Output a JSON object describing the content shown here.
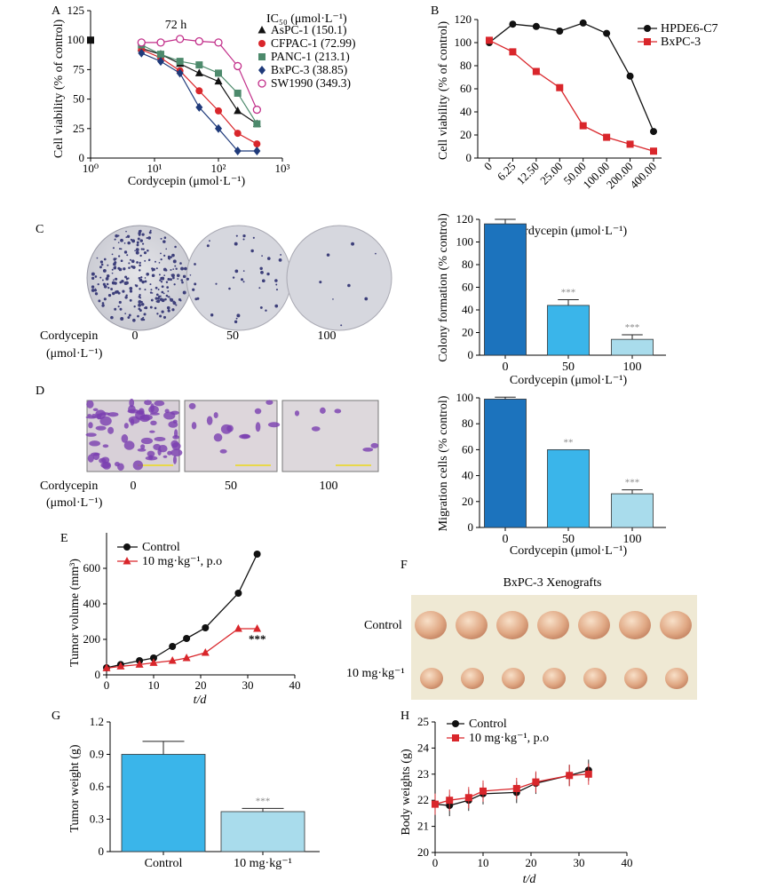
{
  "chart_data": [
    {
      "id": "A",
      "type": "line",
      "panel_label": "A",
      "title": "72 h",
      "xlabel": "Cordycepin (μmol·L⁻¹)",
      "ylabel": "Cell viability (% of control)",
      "x_scale": "log",
      "xlim": [
        1,
        1000
      ],
      "ylim": [
        0,
        125
      ],
      "x_ticks": [
        1,
        10,
        100,
        1000
      ],
      "x_tick_labels": [
        "10⁰",
        "10¹",
        "10²",
        "10³"
      ],
      "y_ticks": [
        0,
        25,
        50,
        75,
        100,
        125
      ],
      "legend_title": "IC₅₀ (μmol·L⁻¹)",
      "legend_position": "top-right",
      "x": [
        6.25,
        12.5,
        25,
        50,
        100,
        200,
        400
      ],
      "series": [
        {
          "name": "AsPC-1 (150.1)",
          "marker": "triangle",
          "color": "#111111",
          "values": [
            93,
            88,
            80,
            72,
            65,
            40,
            29
          ]
        },
        {
          "name": "CFPAC-1 (72.99)",
          "marker": "circle",
          "color": "#d9262b",
          "values": [
            92,
            85,
            74,
            57,
            40,
            21,
            12
          ]
        },
        {
          "name": "PANC-1 (213.1)",
          "marker": "square",
          "color": "#4d8a6c",
          "values": [
            96,
            88,
            82,
            79,
            72,
            55,
            29
          ]
        },
        {
          "name": "BxPC-3 (38.85)",
          "marker": "diamond",
          "color": "#1f3a7a",
          "values": [
            89,
            82,
            72,
            43,
            25,
            6,
            6
          ]
        },
        {
          "name": "SW1990 (349.3)",
          "marker": "open-circle",
          "color": "#c22f8a",
          "values": [
            98,
            98,
            101,
            99,
            98,
            78,
            41
          ]
        }
      ],
      "extra_point": {
        "x": 1,
        "y": 100
      }
    },
    {
      "id": "B",
      "type": "line",
      "panel_label": "B",
      "xlabel": "Cordycepin (μmol·L⁻¹)",
      "ylabel": "Cell viability (% of control)",
      "categories": [
        "0",
        "6.25",
        "12.50",
        "25.00",
        "50.00",
        "100.00",
        "200.00",
        "400.00"
      ],
      "ylim": [
        0,
        120
      ],
      "y_ticks": [
        0,
        20,
        40,
        60,
        80,
        100,
        120
      ],
      "legend_position": "top-right",
      "series": [
        {
          "name": "HPDE6-C7",
          "marker": "circle",
          "color": "#111111",
          "values": [
            100,
            116,
            114,
            110,
            117,
            108,
            71,
            23
          ]
        },
        {
          "name": "BxPC-3",
          "marker": "square",
          "color": "#d9262b",
          "values": [
            102,
            92,
            75,
            61,
            28,
            18,
            12,
            6
          ]
        }
      ]
    },
    {
      "id": "C",
      "type": "bar",
      "xlabel": "Cordycepin (μmol·L⁻¹)",
      "ylabel": "Colony formation (% control)",
      "categories": [
        "0",
        "50",
        "100"
      ],
      "values": [
        116,
        44,
        14
      ],
      "errors": [
        4,
        5,
        4
      ],
      "annotations": [
        "",
        "***",
        "***"
      ],
      "colors": [
        "#1c73bd",
        "#3ab5ea",
        "#a9dcec"
      ],
      "ylim": [
        0,
        120
      ],
      "y_ticks": [
        0,
        20,
        40,
        60,
        80,
        100,
        120
      ]
    },
    {
      "id": "D",
      "type": "bar",
      "xlabel": "Cordycepin (μmol·L⁻¹)",
      "ylabel": "Migration cells (% control)",
      "categories": [
        "0",
        "50",
        "100"
      ],
      "values": [
        99,
        60,
        26
      ],
      "errors": [
        1.5,
        0,
        3
      ],
      "annotations": [
        "",
        "**",
        "***"
      ],
      "colors": [
        "#1c73bd",
        "#3ab5ea",
        "#a9dcec"
      ],
      "ylim": [
        0,
        100
      ],
      "y_ticks": [
        0,
        20,
        40,
        60,
        80,
        100
      ]
    },
    {
      "id": "E",
      "type": "line",
      "panel_label": "E",
      "xlabel": "t/d",
      "ylabel": "Tumor volume (mm³)",
      "xlim": [
        0,
        40
      ],
      "ylim": [
        0,
        800
      ],
      "x_ticks": [
        0,
        10,
        20,
        30,
        40
      ],
      "y_ticks": [
        0,
        200,
        400,
        600
      ],
      "legend_position": "top-left",
      "x": [
        0,
        3,
        7,
        10,
        14,
        17,
        21,
        28,
        32
      ],
      "series": [
        {
          "name": "Control",
          "marker": "circle",
          "color": "#111111",
          "values": [
            40,
            58,
            80,
            95,
            160,
            205,
            265,
            460,
            680
          ]
        },
        {
          "name": "10 mg·kg⁻¹, p.o",
          "marker": "triangle",
          "color": "#d9262b",
          "values": [
            38,
            48,
            58,
            68,
            80,
            95,
            125,
            260,
            260
          ]
        }
      ],
      "annotation": "***"
    },
    {
      "id": "G",
      "type": "bar",
      "panel_label": "G",
      "ylabel": "Tumor weight (g)",
      "categories": [
        "Control",
        "10 mg·kg⁻¹"
      ],
      "values": [
        0.9,
        0.37
      ],
      "errors": [
        0.12,
        0.03
      ],
      "annotations": [
        "",
        "***"
      ],
      "colors": [
        "#3ab5ea",
        "#a9dcec"
      ],
      "ylim": [
        0,
        1.2
      ],
      "y_ticks": [
        0,
        0.3,
        0.6,
        0.9,
        1.2
      ],
      "y_tick_labels": [
        "0",
        "0.3",
        "0.6",
        "0.9",
        "1.2"
      ]
    },
    {
      "id": "H",
      "type": "line",
      "panel_label": "H",
      "xlabel": "t/d",
      "ylabel": "Body weights (g)",
      "xlim": [
        0,
        40
      ],
      "ylim": [
        20,
        25
      ],
      "x_ticks": [
        0,
        10,
        20,
        30,
        40
      ],
      "y_ticks": [
        20,
        21,
        22,
        23,
        24,
        25
      ],
      "legend_position": "top-left",
      "x": [
        0,
        3,
        7,
        10,
        17,
        21,
        28,
        32
      ],
      "series": [
        {
          "name": "Control",
          "marker": "circle",
          "color": "#111111",
          "values": [
            21.85,
            21.8,
            22.0,
            22.25,
            22.3,
            22.65,
            22.95,
            23.15
          ]
        },
        {
          "name": "10 mg·kg⁻¹, p.o",
          "marker": "square",
          "color": "#d9262b",
          "values": [
            21.85,
            22.0,
            22.1,
            22.35,
            22.45,
            22.7,
            22.95,
            23.0
          ]
        }
      ]
    }
  ],
  "photo_panels": {
    "C": {
      "label": "C",
      "row_label": "Cordycepin",
      "row_unit": "(μmol·L⁻¹)",
      "doses": [
        "0",
        "50",
        "100"
      ]
    },
    "D": {
      "label": "D",
      "row_label": "Cordycepin",
      "row_unit": "(μmol·L⁻¹)",
      "doses": [
        "0",
        "50",
        "100"
      ]
    },
    "F": {
      "label": "F",
      "title": "BxPC-3 Xenografts",
      "rows": [
        "Control",
        "10 mg·kg⁻¹"
      ]
    }
  }
}
